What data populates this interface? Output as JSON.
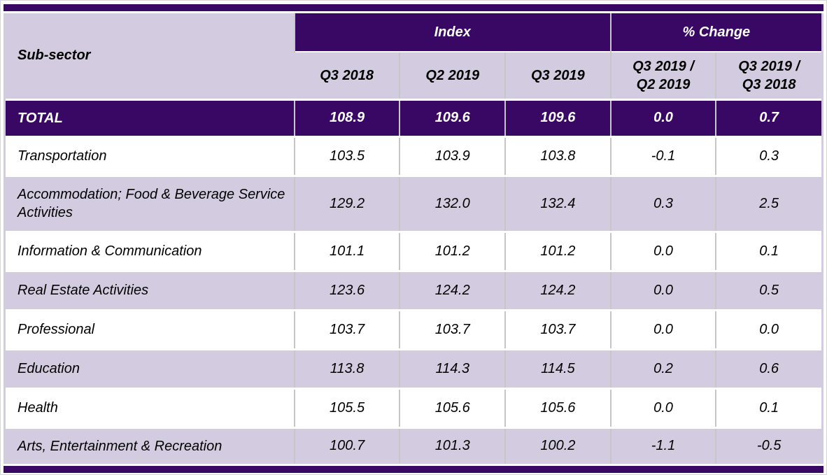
{
  "colors": {
    "header_purple": "#390764",
    "lavender": "#D3CCE1",
    "row_white": "#FFFFFF",
    "grid_line_gray": "#C6C6C6",
    "total_row_text": "#FFFFFF",
    "body_text": "#000000"
  },
  "table": {
    "corner_header": "Sub-sector",
    "groups": [
      {
        "label": "Index",
        "span": 3
      },
      {
        "label": "% Change",
        "span": 2
      }
    ],
    "columns": [
      {
        "line1": "Q3 2018",
        "line2": ""
      },
      {
        "line1": "Q2 2019",
        "line2": ""
      },
      {
        "line1": "Q3 2019",
        "line2": ""
      },
      {
        "line1": "Q3 2019 /",
        "line2": "Q2 2019"
      },
      {
        "line1": "Q3 2019 /",
        "line2": "Q3 2018"
      }
    ],
    "total_row": {
      "label": "TOTAL",
      "values": [
        "108.9",
        "109.6",
        "109.6",
        "0.0",
        "0.7"
      ]
    },
    "rows": [
      {
        "label": "Transportation",
        "values": [
          "103.5",
          "103.9",
          "103.8",
          "-0.1",
          "0.3"
        ]
      },
      {
        "label": "Accommodation; Food & Beverage Service Activities",
        "values": [
          "129.2",
          "132.0",
          "132.4",
          "0.3",
          "2.5"
        ]
      },
      {
        "label": "Information & Communication",
        "values": [
          "101.1",
          "101.2",
          "101.2",
          "0.0",
          "0.1"
        ]
      },
      {
        "label": "Real Estate Activities",
        "values": [
          "123.6",
          "124.2",
          "124.2",
          "0.0",
          "0.5"
        ]
      },
      {
        "label": "Professional",
        "values": [
          "103.7",
          "103.7",
          "103.7",
          "0.0",
          "0.0"
        ]
      },
      {
        "label": "Education",
        "values": [
          "113.8",
          "114.3",
          "114.5",
          "0.2",
          "0.6"
        ]
      },
      {
        "label": "Health",
        "values": [
          "105.5",
          "105.6",
          "105.6",
          "0.0",
          "0.1"
        ]
      },
      {
        "label": "Arts, Entertainment & Recreation",
        "values": [
          "100.7",
          "101.3",
          "100.2",
          "-1.1",
          "-0.5"
        ]
      }
    ]
  },
  "chart_data": {
    "type": "table",
    "title": "",
    "row_header": "Sub-sector",
    "column_groups": [
      "Index",
      "Index",
      "Index",
      "% Change",
      "% Change"
    ],
    "columns": [
      "Q3 2018",
      "Q2 2019",
      "Q3 2019",
      "Q3 2019 / Q2 2019",
      "Q3 2019 / Q3 2018"
    ],
    "rows": [
      {
        "sub_sector": "TOTAL",
        "values": [
          108.9,
          109.6,
          109.6,
          0.0,
          0.7
        ]
      },
      {
        "sub_sector": "Transportation",
        "values": [
          103.5,
          103.9,
          103.8,
          -0.1,
          0.3
        ]
      },
      {
        "sub_sector": "Accommodation; Food & Beverage Service Activities",
        "values": [
          129.2,
          132.0,
          132.4,
          0.3,
          2.5
        ]
      },
      {
        "sub_sector": "Information & Communication",
        "values": [
          101.1,
          101.2,
          101.2,
          0.0,
          0.1
        ]
      },
      {
        "sub_sector": "Real Estate Activities",
        "values": [
          123.6,
          124.2,
          124.2,
          0.0,
          0.5
        ]
      },
      {
        "sub_sector": "Professional",
        "values": [
          103.7,
          103.7,
          103.7,
          0.0,
          0.0
        ]
      },
      {
        "sub_sector": "Education",
        "values": [
          113.8,
          114.3,
          114.5,
          0.2,
          0.6
        ]
      },
      {
        "sub_sector": "Health",
        "values": [
          105.5,
          105.6,
          105.6,
          0.0,
          0.1
        ]
      },
      {
        "sub_sector": "Arts, Entertainment & Recreation",
        "values": [
          100.7,
          101.3,
          100.2,
          -1.1,
          -0.5
        ]
      }
    ]
  }
}
